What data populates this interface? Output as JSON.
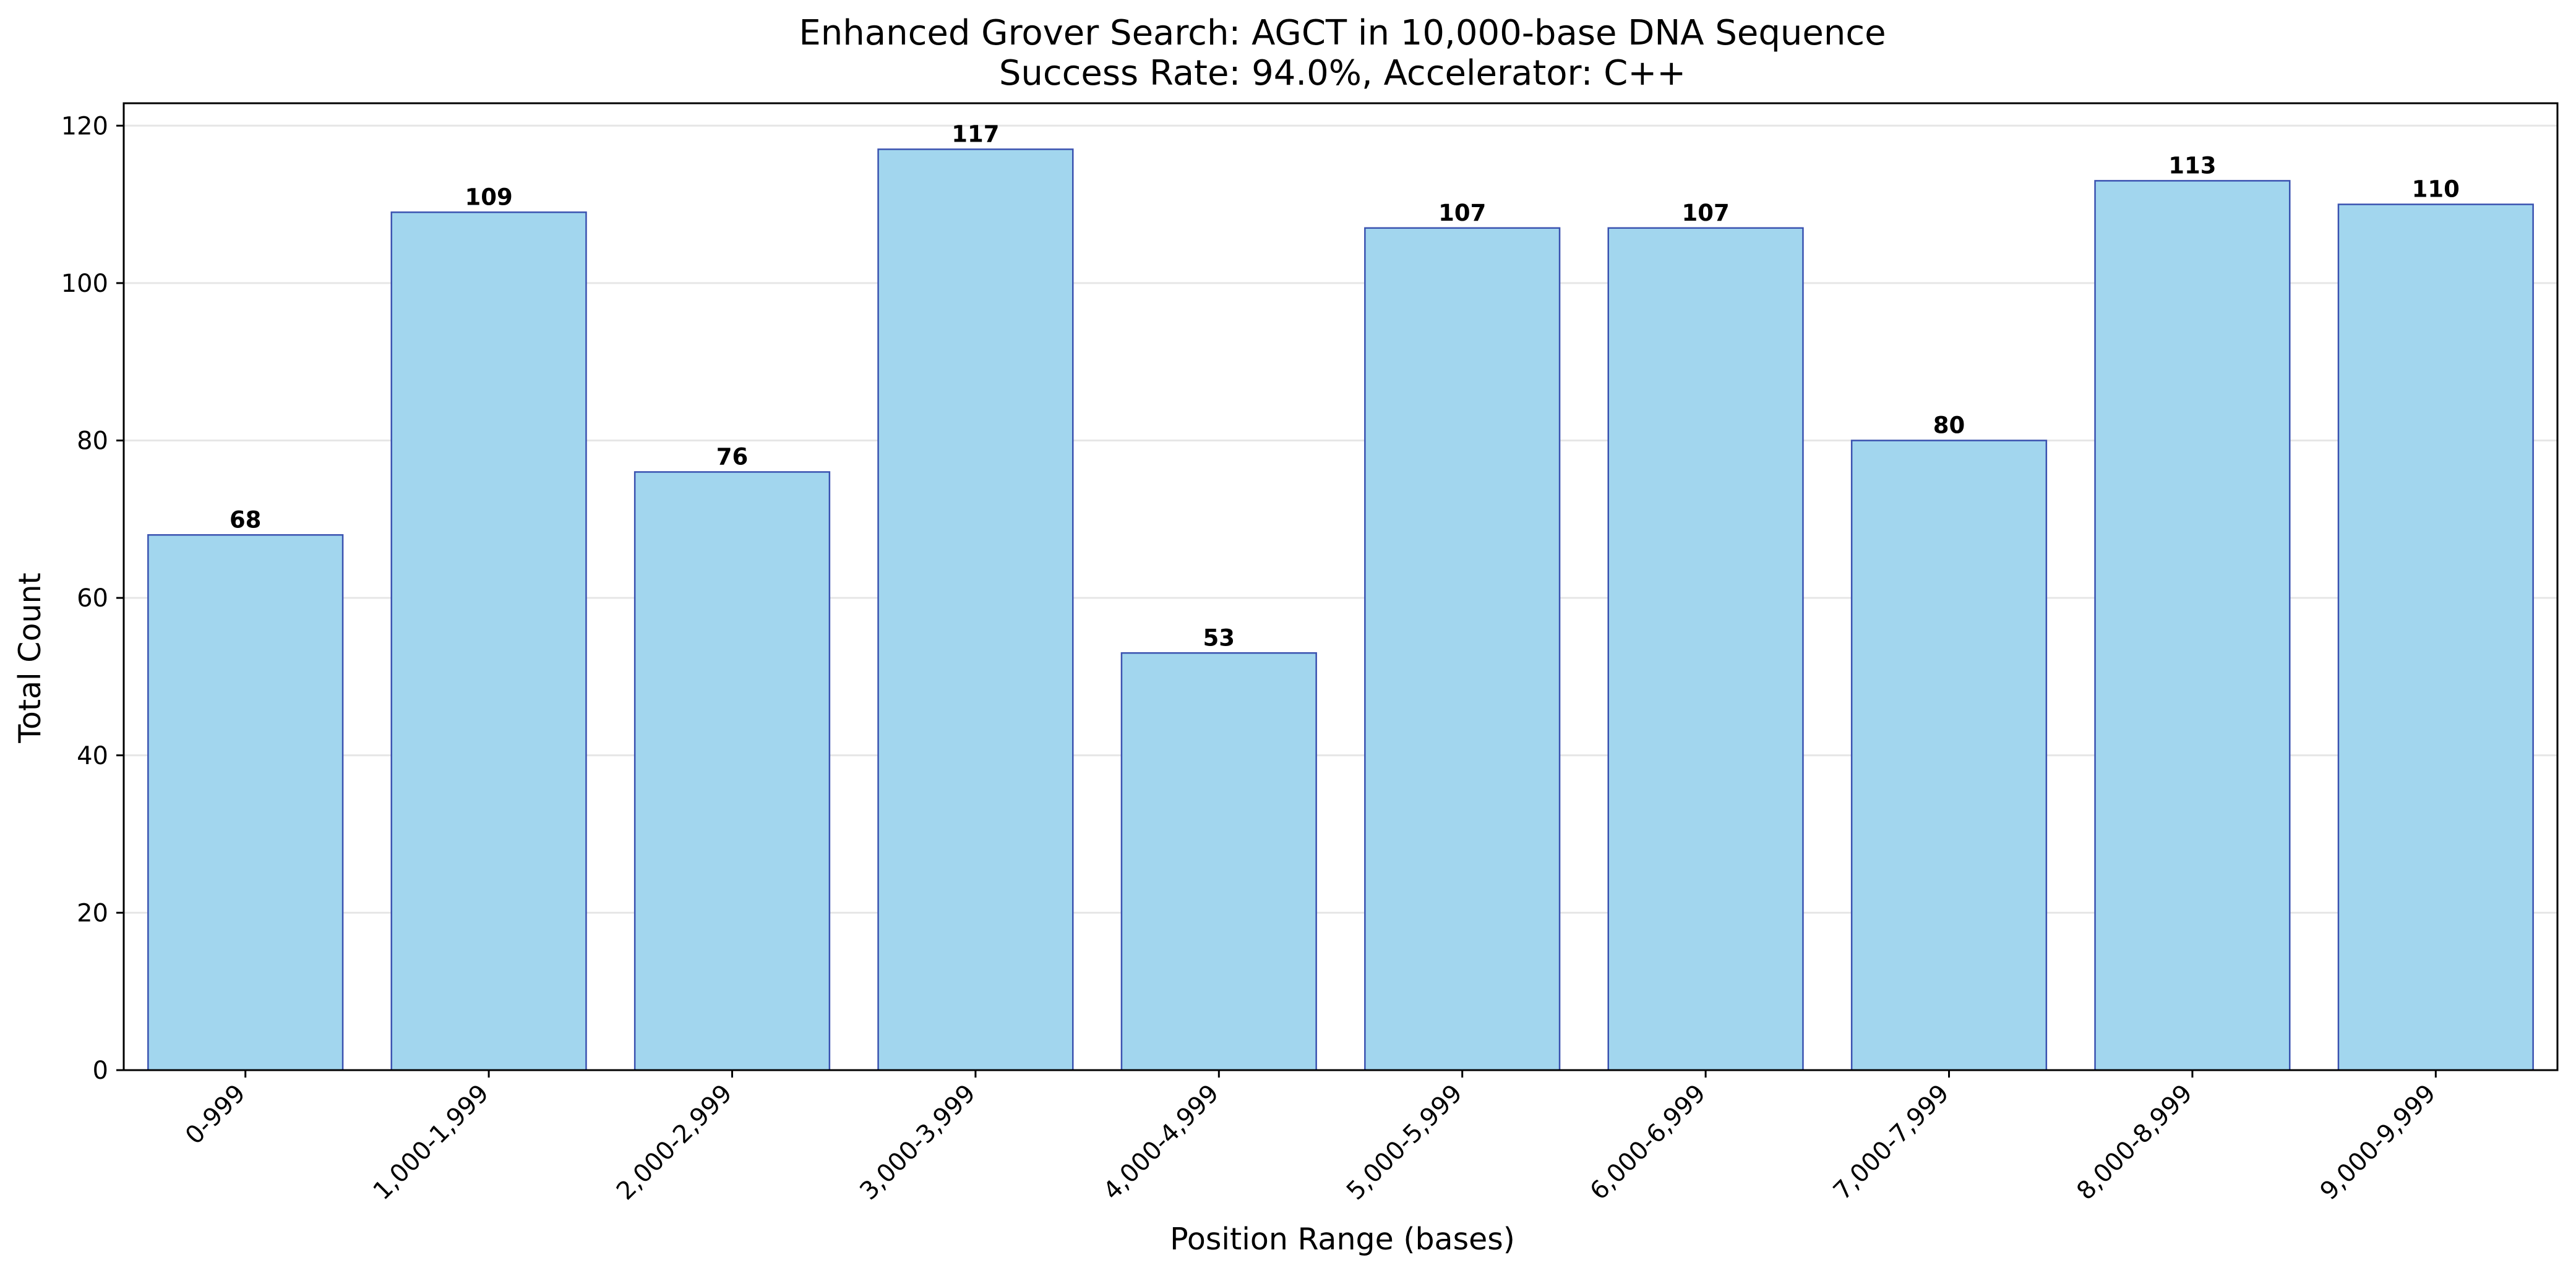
{
  "chart_data": {
    "type": "bar",
    "title": "Enhanced Grover Search: AGCT in 10,000-base DNA Sequence",
    "subtitle": "Success Rate: 94.0%, Accelerator: C++",
    "xlabel": "Position Range (bases)",
    "ylabel": "Total Count",
    "categories": [
      "0-999",
      "1,000-1,999",
      "2,000-2,999",
      "3,000-3,999",
      "4,000-4,999",
      "5,000-5,999",
      "6,000-6,999",
      "7,000-7,999",
      "8,000-8,999",
      "9,000-9,999"
    ],
    "values": [
      68,
      109,
      76,
      117,
      53,
      107,
      107,
      80,
      113,
      110
    ],
    "data_labels": [
      "68",
      "109",
      "76",
      "117",
      "53",
      "107",
      "107",
      "80",
      "113",
      "110"
    ],
    "ylim": [
      0,
      122.85
    ],
    "yticks": [
      0,
      20,
      40,
      60,
      80,
      100,
      120
    ],
    "ytick_labels": [
      "0",
      "20",
      "40",
      "60",
      "80",
      "100",
      "120"
    ],
    "grid": "horizontal",
    "legend": "none",
    "colors": {
      "bar_fill": "#a2d6ee",
      "bar_edge": "#3a52b0",
      "grid": "#e6e6e6",
      "axis": "#000000"
    }
  }
}
